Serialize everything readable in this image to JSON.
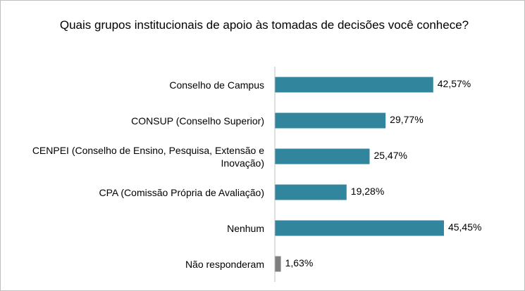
{
  "chart_data": {
    "type": "bar",
    "orientation": "horizontal",
    "title": "Quais grupos institucionais de apoio às tomadas de decisões você conhece?",
    "categories": [
      "Conselho de Campus",
      "CONSUP (Conselho Superior)",
      "CENPEI (Conselho de Ensino, Pesquisa, Extensão e Inovação)",
      "CPA (Comissão Própria de Avaliação)",
      "Nenhum",
      "Não responderam"
    ],
    "values": [
      42.57,
      29.77,
      25.47,
      19.28,
      45.45,
      1.63
    ],
    "value_labels": [
      "42,57%",
      "29,77%",
      "25,47%",
      "19,28%",
      "45,45%",
      "1,63%"
    ],
    "colors": [
      "#31859c",
      "#31859c",
      "#31859c",
      "#31859c",
      "#31859c",
      "#7f7f7f"
    ],
    "xlim": [
      0,
      50
    ]
  }
}
